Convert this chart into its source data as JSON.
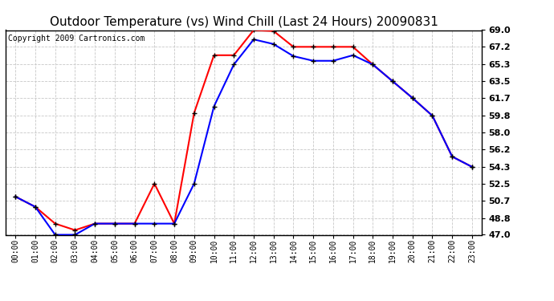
{
  "title": "Outdoor Temperature (vs) Wind Chill (Last 24 Hours) 20090831",
  "copyright": "Copyright 2009 Cartronics.com",
  "x_labels": [
    "00:00",
    "01:00",
    "02:00",
    "03:00",
    "04:00",
    "05:00",
    "06:00",
    "07:00",
    "08:00",
    "09:00",
    "10:00",
    "11:00",
    "12:00",
    "13:00",
    "14:00",
    "15:00",
    "16:00",
    "17:00",
    "18:00",
    "19:00",
    "20:00",
    "21:00",
    "22:00",
    "23:00"
  ],
  "temp_data": [
    51.1,
    50.0,
    48.2,
    47.5,
    48.2,
    48.2,
    48.2,
    52.5,
    48.2,
    60.1,
    66.3,
    66.3,
    69.0,
    68.9,
    67.2,
    67.2,
    67.2,
    67.2,
    65.3,
    63.5,
    61.7,
    59.8,
    55.4,
    54.3
  ],
  "windchill_data": [
    51.1,
    50.0,
    47.0,
    47.0,
    48.2,
    48.2,
    48.2,
    48.2,
    48.2,
    52.5,
    60.8,
    65.3,
    68.0,
    67.5,
    66.2,
    65.7,
    65.7,
    66.3,
    65.3,
    63.5,
    61.7,
    59.8,
    55.4,
    54.3
  ],
  "temp_color": "#ff0000",
  "windchill_color": "#0000ff",
  "bg_color": "#ffffff",
  "plot_bg_color": "#ffffff",
  "grid_color": "#c8c8c8",
  "ylim": [
    47.0,
    69.0
  ],
  "yticks": [
    47.0,
    48.8,
    50.7,
    52.5,
    54.3,
    56.2,
    58.0,
    59.8,
    61.7,
    63.5,
    65.3,
    67.2,
    69.0
  ],
  "title_fontsize": 11,
  "copyright_fontsize": 7
}
